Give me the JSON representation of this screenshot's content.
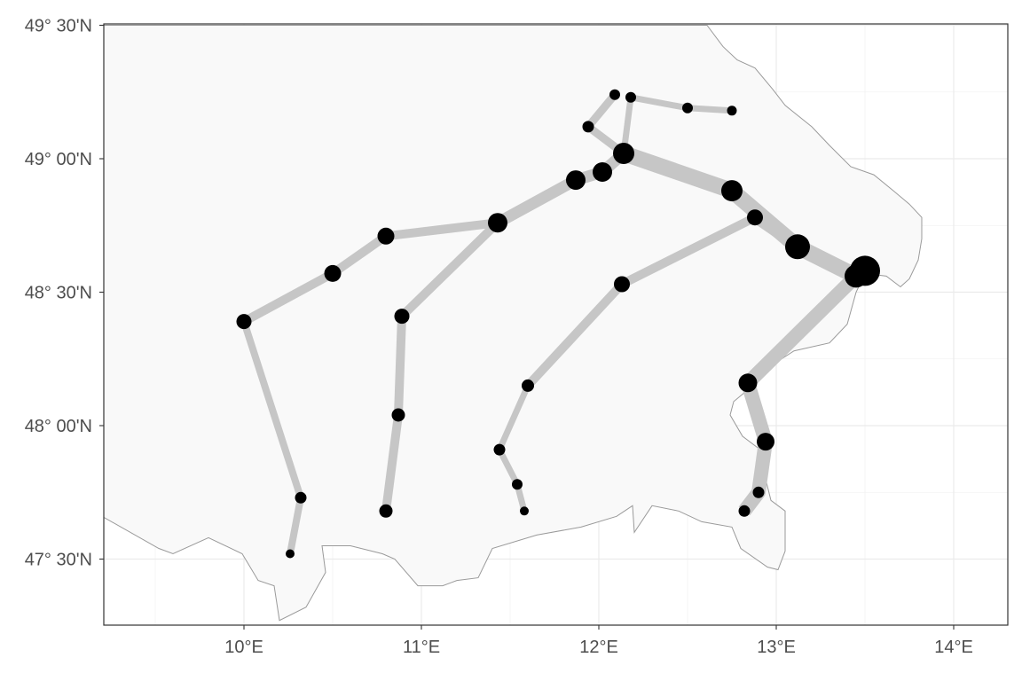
{
  "axes": {
    "x_ticks": [
      {
        "value": 10,
        "label": "10°E"
      },
      {
        "value": 11,
        "label": "11°E"
      },
      {
        "value": 12,
        "label": "12°E"
      },
      {
        "value": 13,
        "label": "13°E"
      },
      {
        "value": 14,
        "label": "14°E"
      }
    ],
    "y_ticks": [
      {
        "value": 47.5,
        "label": "47° 30'N"
      },
      {
        "value": 48.0,
        "label": "48° 00'N"
      },
      {
        "value": 48.5,
        "label": "48° 30'N"
      },
      {
        "value": 49.0,
        "label": "49° 00'N"
      },
      {
        "value": 49.5,
        "label": "49° 30'N"
      }
    ],
    "x_range": [
      9.2,
      14.3
    ],
    "y_range": [
      47.25,
      49.5
    ]
  },
  "colors": {
    "land": "#f9f9f9",
    "border": "#9a9a9a",
    "route": "#c6c6c6",
    "node": "#000000"
  },
  "region_outline": [
    [
      12.61,
      49.5
    ],
    [
      12.7,
      49.42
    ],
    [
      12.78,
      49.37
    ],
    [
      12.88,
      49.34
    ],
    [
      12.98,
      49.26
    ],
    [
      13.05,
      49.2
    ],
    [
      13.2,
      49.12
    ],
    [
      13.3,
      49.05
    ],
    [
      13.42,
      48.97
    ],
    [
      13.55,
      48.94
    ],
    [
      13.66,
      48.88
    ],
    [
      13.75,
      48.83
    ],
    [
      13.82,
      48.78
    ],
    [
      13.82,
      48.7
    ],
    [
      13.8,
      48.62
    ],
    [
      13.75,
      48.55
    ],
    [
      13.7,
      48.52
    ],
    [
      13.62,
      48.56
    ],
    [
      13.5,
      48.57
    ],
    [
      13.45,
      48.5
    ],
    [
      13.4,
      48.38
    ],
    [
      13.3,
      48.31
    ],
    [
      13.1,
      48.28
    ],
    [
      12.96,
      48.22
    ],
    [
      12.85,
      48.14
    ],
    [
      12.76,
      48.09
    ],
    [
      12.74,
      48.04
    ],
    [
      12.81,
      47.96
    ],
    [
      12.91,
      47.91
    ],
    [
      12.94,
      47.8
    ],
    [
      12.97,
      47.72
    ],
    [
      13.05,
      47.68
    ],
    [
      13.05,
      47.53
    ],
    [
      13.01,
      47.46
    ],
    [
      12.95,
      47.47
    ],
    [
      12.8,
      47.54
    ],
    [
      12.75,
      47.62
    ],
    [
      12.58,
      47.64
    ],
    [
      12.45,
      47.68
    ],
    [
      12.3,
      47.7
    ],
    [
      12.2,
      47.6
    ],
    [
      12.19,
      47.7
    ],
    [
      12.1,
      47.66
    ],
    [
      11.9,
      47.62
    ],
    [
      11.65,
      47.59
    ],
    [
      11.4,
      47.54
    ],
    [
      11.32,
      47.43
    ],
    [
      11.2,
      47.42
    ],
    [
      11.12,
      47.4
    ],
    [
      10.98,
      47.4
    ],
    [
      10.85,
      47.5
    ],
    [
      10.78,
      47.52
    ],
    [
      10.6,
      47.55
    ],
    [
      10.44,
      47.55
    ],
    [
      10.46,
      47.45
    ],
    [
      10.35,
      47.32
    ],
    [
      10.2,
      47.27
    ],
    [
      10.17,
      47.4
    ],
    [
      10.08,
      47.42
    ],
    [
      9.99,
      47.52
    ],
    [
      9.8,
      47.58
    ],
    [
      9.6,
      47.52
    ],
    [
      9.52,
      47.54
    ],
    [
      9.2,
      47.66
    ],
    [
      9.2,
      49.5
    ]
  ],
  "routes": [
    {
      "width": 8,
      "points": [
        [
          10.26,
          47.52
        ],
        [
          10.32,
          47.73
        ],
        [
          10.0,
          48.39
        ]
      ]
    },
    {
      "width": 10,
      "points": [
        [
          10.0,
          48.39
        ],
        [
          10.5,
          48.57
        ],
        [
          10.8,
          48.71
        ],
        [
          11.43,
          48.76
        ]
      ]
    },
    {
      "width": 13,
      "points": [
        [
          11.43,
          48.76
        ],
        [
          11.87,
          48.92
        ],
        [
          12.02,
          48.95
        ],
        [
          12.14,
          49.02
        ]
      ]
    },
    {
      "width": 10,
      "points": [
        [
          10.8,
          47.68
        ],
        [
          10.87,
          48.04
        ],
        [
          10.89,
          48.41
        ],
        [
          11.43,
          48.76
        ]
      ]
    },
    {
      "width": 9,
      "points": [
        [
          12.14,
          49.02
        ],
        [
          11.94,
          49.12
        ],
        [
          12.09,
          49.24
        ]
      ]
    },
    {
      "width": 7,
      "points": [
        [
          12.14,
          49.02
        ],
        [
          12.18,
          49.23
        ],
        [
          12.5,
          49.19
        ],
        [
          12.75,
          49.18
        ]
      ]
    },
    {
      "width": 18,
      "points": [
        [
          12.14,
          49.02
        ],
        [
          12.75,
          48.88
        ],
        [
          13.12,
          48.67
        ],
        [
          13.45,
          48.56
        ]
      ]
    },
    {
      "width": 7,
      "points": [
        [
          11.58,
          47.68
        ],
        [
          11.54,
          47.78
        ],
        [
          11.44,
          47.91
        ],
        [
          11.6,
          48.15
        ]
      ]
    },
    {
      "width": 10,
      "points": [
        [
          11.6,
          48.15
        ],
        [
          12.13,
          48.53
        ],
        [
          12.88,
          48.78
        ]
      ]
    },
    {
      "width": 12,
      "points": [
        [
          12.88,
          48.78
        ],
        [
          13.12,
          48.67
        ]
      ]
    },
    {
      "width": 16,
      "points": [
        [
          12.82,
          47.68
        ],
        [
          12.9,
          47.75
        ],
        [
          12.94,
          47.94
        ],
        [
          12.84,
          48.16
        ],
        [
          13.45,
          48.56
        ]
      ]
    }
  ],
  "nodes": [
    {
      "lon": 12.09,
      "lat": 49.24,
      "size": 6
    },
    {
      "lon": 12.18,
      "lat": 49.23,
      "size": 6
    },
    {
      "lon": 12.5,
      "lat": 49.19,
      "size": 6
    },
    {
      "lon": 12.75,
      "lat": 49.18,
      "size": 5.5
    },
    {
      "lon": 11.94,
      "lat": 49.12,
      "size": 6.5
    },
    {
      "lon": 12.14,
      "lat": 49.02,
      "size": 12
    },
    {
      "lon": 11.87,
      "lat": 48.92,
      "size": 11
    },
    {
      "lon": 12.02,
      "lat": 48.95,
      "size": 11
    },
    {
      "lon": 11.43,
      "lat": 48.76,
      "size": 11
    },
    {
      "lon": 12.75,
      "lat": 48.88,
      "size": 12
    },
    {
      "lon": 12.88,
      "lat": 48.78,
      "size": 9
    },
    {
      "lon": 10.8,
      "lat": 48.71,
      "size": 9.5
    },
    {
      "lon": 13.12,
      "lat": 48.67,
      "size": 14
    },
    {
      "lon": 13.5,
      "lat": 48.58,
      "size": 17
    },
    {
      "lon": 13.45,
      "lat": 48.56,
      "size": 13
    },
    {
      "lon": 10.5,
      "lat": 48.57,
      "size": 9.5
    },
    {
      "lon": 12.13,
      "lat": 48.53,
      "size": 9
    },
    {
      "lon": 10.89,
      "lat": 48.41,
      "size": 8.5
    },
    {
      "lon": 10.0,
      "lat": 48.39,
      "size": 8.5
    },
    {
      "lon": 12.84,
      "lat": 48.16,
      "size": 10.5
    },
    {
      "lon": 11.6,
      "lat": 48.15,
      "size": 7
    },
    {
      "lon": 10.87,
      "lat": 48.04,
      "size": 7.5
    },
    {
      "lon": 12.94,
      "lat": 47.94,
      "size": 10
    },
    {
      "lon": 11.44,
      "lat": 47.91,
      "size": 6.5
    },
    {
      "lon": 11.54,
      "lat": 47.78,
      "size": 6
    },
    {
      "lon": 12.9,
      "lat": 47.75,
      "size": 6.5
    },
    {
      "lon": 10.32,
      "lat": 47.73,
      "size": 6.5
    },
    {
      "lon": 10.8,
      "lat": 47.68,
      "size": 7.5
    },
    {
      "lon": 11.58,
      "lat": 47.68,
      "size": 5
    },
    {
      "lon": 12.82,
      "lat": 47.68,
      "size": 6.5
    },
    {
      "lon": 10.26,
      "lat": 47.52,
      "size": 5
    }
  ]
}
